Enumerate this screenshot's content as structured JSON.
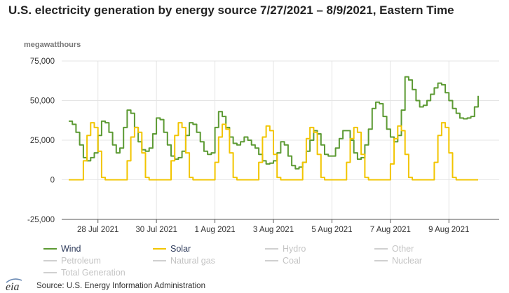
{
  "title": "U.S. electricity generation by energy source 7/27/2021 – 8/9/2021, Eastern Time",
  "source": "Source: U.S. Energy Information Administration",
  "logo_text": "eia",
  "colors": {
    "wind": "#5c9a33",
    "solar": "#f2c500",
    "inactive": "#d0d0d0",
    "grid": "#e4e4e4",
    "axis": "#555555"
  },
  "legend": [
    {
      "label": "Wind",
      "active": true,
      "color": "#5c9a33"
    },
    {
      "label": "Solar",
      "active": true,
      "color": "#f2c500"
    },
    {
      "label": "Hydro",
      "active": false
    },
    {
      "label": "Other",
      "active": false
    },
    {
      "label": "Petroleum",
      "active": false
    },
    {
      "label": "Natural gas",
      "active": false
    },
    {
      "label": "Coal",
      "active": false
    },
    {
      "label": "Nuclear",
      "active": false
    },
    {
      "label": "Total Generation",
      "active": false
    }
  ],
  "chart_data": {
    "type": "line",
    "title": "U.S. electricity generation by energy source 7/27/2021 – 8/9/2021, Eastern Time",
    "ylabel": "megawatthours",
    "xlabel": "",
    "ylim": [
      -25000,
      75000
    ],
    "yticks": [
      -25000,
      0,
      25000,
      50000,
      75000
    ],
    "ytick_labels": [
      "-25,000",
      "0",
      "25,000",
      "50,000",
      "75,000"
    ],
    "xlim": [
      0,
      336
    ],
    "xticks": [
      24,
      72,
      120,
      168,
      216,
      264,
      312
    ],
    "xtick_labels": [
      "28 Jul 2021",
      "30 Jul 2021",
      "1 Aug 2021",
      "3 Aug 2021",
      "5 Aug 2021",
      "7 Aug 2021",
      "9 Aug 2021"
    ],
    "x_unit": "hours since 27 Jul 2021 00:00",
    "grid": true,
    "legend_position": "bottom",
    "series": [
      {
        "name": "Wind",
        "color": "#5c9a33",
        "x": [
          0,
          3,
          6,
          9,
          12,
          15,
          18,
          21,
          24,
          27,
          30,
          33,
          36,
          39,
          42,
          45,
          48,
          51,
          54,
          57,
          60,
          63,
          66,
          69,
          72,
          75,
          78,
          81,
          84,
          87,
          90,
          93,
          96,
          99,
          102,
          105,
          108,
          111,
          114,
          117,
          120,
          123,
          126,
          129,
          132,
          135,
          138,
          141,
          144,
          147,
          150,
          153,
          156,
          159,
          162,
          165,
          168,
          171,
          174,
          177,
          180,
          183,
          186,
          189,
          192,
          195,
          198,
          201,
          204,
          207,
          210,
          213,
          216,
          219,
          222,
          225,
          228,
          231,
          234,
          237,
          240,
          243,
          246,
          249,
          252,
          255,
          258,
          261,
          264,
          267,
          270,
          273,
          276,
          279,
          282,
          285,
          288,
          291,
          294,
          297,
          300,
          303,
          306,
          309,
          312,
          315,
          318,
          321,
          324,
          327,
          330,
          333,
          336
        ],
        "y": [
          37000,
          35000,
          30000,
          22000,
          14000,
          12000,
          14000,
          17000,
          28000,
          37000,
          36000,
          30000,
          22000,
          17000,
          20000,
          33000,
          44000,
          42000,
          33000,
          24000,
          19000,
          18000,
          20000,
          29000,
          39000,
          38000,
          30000,
          22000,
          15000,
          13000,
          14000,
          18000,
          28000,
          36000,
          35000,
          30000,
          24000,
          18000,
          16000,
          17000,
          33000,
          43000,
          40000,
          33000,
          27000,
          23000,
          22000,
          24000,
          27000,
          25000,
          22000,
          20000,
          16000,
          12000,
          10000,
          10500,
          12000,
          17000,
          24000,
          22000,
          15000,
          9000,
          7000,
          8000,
          11000,
          18000,
          25000,
          31000,
          29000,
          22000,
          16000,
          15000,
          15000,
          20000,
          26000,
          31000,
          31000,
          25000,
          17000,
          13000,
          14000,
          22000,
          32000,
          45000,
          49000,
          48000,
          40000,
          32000,
          27000,
          24000,
          28000,
          44000,
          65000,
          63000,
          57000,
          50000,
          46000,
          47000,
          50000,
          54000,
          58000,
          61000,
          60000,
          55000,
          50000,
          45000,
          42000,
          39000,
          38500,
          39000,
          40000,
          46000,
          53000
        ]
      },
      {
        "name": "Solar",
        "color": "#f2c500",
        "x": [
          0,
          3,
          6,
          9,
          12,
          15,
          18,
          21,
          24,
          27,
          30,
          33,
          36,
          39,
          42,
          45,
          48,
          51,
          54,
          57,
          60,
          63,
          66,
          69,
          72,
          75,
          78,
          81,
          84,
          87,
          90,
          93,
          96,
          99,
          102,
          105,
          108,
          111,
          114,
          117,
          120,
          123,
          126,
          129,
          132,
          135,
          138,
          141,
          144,
          147,
          150,
          153,
          156,
          159,
          162,
          165,
          168,
          171,
          174,
          177,
          180,
          183,
          186,
          189,
          192,
          195,
          198,
          201,
          204,
          207,
          210,
          213,
          216,
          219,
          222,
          225,
          228,
          231,
          234,
          237,
          240,
          243,
          246,
          249,
          252,
          255,
          258,
          261,
          264,
          267,
          270,
          273,
          276,
          279,
          282,
          285,
          288,
          291,
          294,
          297,
          300,
          303,
          306,
          309,
          312,
          315,
          318,
          321,
          324,
          327,
          330,
          333,
          336
        ],
        "y": [
          0,
          0,
          0,
          0,
          12000,
          28000,
          36000,
          33000,
          18000,
          1500,
          0,
          0,
          0,
          0,
          0,
          0,
          12000,
          27000,
          33000,
          30000,
          17000,
          1500,
          0,
          0,
          0,
          0,
          0,
          0,
          12000,
          28000,
          36000,
          33000,
          17000,
          1500,
          0,
          0,
          0,
          0,
          0,
          0,
          11000,
          27000,
          35000,
          32000,
          17000,
          1500,
          0,
          0,
          0,
          0,
          0,
          0,
          11000,
          27000,
          34000,
          31000,
          16000,
          1500,
          0,
          0,
          0,
          0,
          0,
          0,
          11000,
          26000,
          33000,
          30000,
          16000,
          1500,
          0,
          0,
          0,
          0,
          0,
          0,
          11000,
          26000,
          33000,
          30000,
          16000,
          1500,
          0,
          0,
          0,
          0,
          0,
          0,
          10000,
          26000,
          34000,
          31000,
          16000,
          1500,
          0,
          0,
          0,
          0,
          0,
          0,
          11000,
          28000,
          36000,
          33000,
          17000,
          1500,
          0,
          0,
          0,
          0,
          0,
          0,
          0
        ]
      }
    ]
  }
}
